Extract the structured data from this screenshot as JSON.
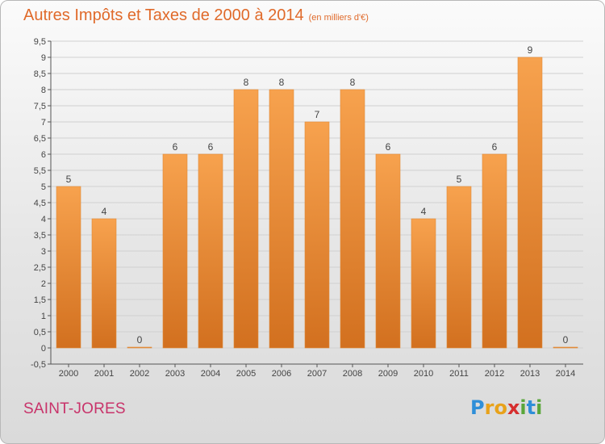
{
  "header": {
    "title": "Autres Impôts et Taxes de 2000 à 2014",
    "unit": "(en milliers d'€)"
  },
  "commune": "SAINT-JORES",
  "logo": {
    "letters": [
      "P",
      "r",
      "o",
      "x",
      "i",
      "t",
      "i"
    ],
    "colors": [
      "#2f8fd8",
      "#e8a21a",
      "#e8a21a",
      "#d62e2e",
      "#5aa63a",
      "#2f8fd8",
      "#5aa63a"
    ]
  },
  "colors": {
    "bar_light": "#f7a24e",
    "bar_dark": "#d2701f",
    "title": "#e06a2a",
    "commune": "#c8336a"
  },
  "chart_data": {
    "type": "bar",
    "categories": [
      "2000",
      "2001",
      "2002",
      "2003",
      "2004",
      "2005",
      "2006",
      "2007",
      "2008",
      "2009",
      "2010",
      "2011",
      "2012",
      "2013",
      "2014"
    ],
    "values": [
      5,
      4,
      0,
      6,
      6,
      8,
      8,
      7,
      8,
      6,
      4,
      5,
      6,
      9,
      0
    ],
    "data_labels": [
      "5",
      "4",
      "0",
      "6",
      "6",
      "8",
      "8",
      "7",
      "8",
      "6",
      "4",
      "5",
      "6",
      "9",
      "0"
    ],
    "ylim": [
      -0.5,
      9.5
    ],
    "yticks": [
      "-0,5",
      "0",
      "0,5",
      "1",
      "1,5",
      "2",
      "2,5",
      "3",
      "3,5",
      "4",
      "4,5",
      "5",
      "5,5",
      "6",
      "6,5",
      "7",
      "7,5",
      "8",
      "8,5",
      "9",
      "9,5"
    ],
    "ytick_values": [
      -0.5,
      0,
      0.5,
      1,
      1.5,
      2,
      2.5,
      3,
      3.5,
      4,
      4.5,
      5,
      5.5,
      6,
      6.5,
      7,
      7.5,
      8,
      8.5,
      9,
      9.5
    ],
    "grid": true
  }
}
